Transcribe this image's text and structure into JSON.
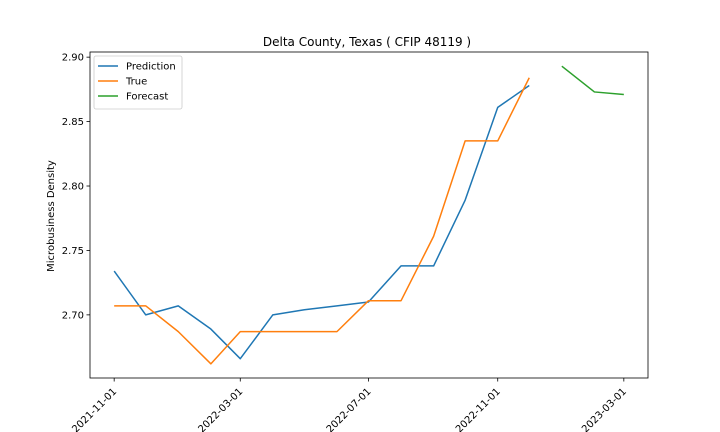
{
  "chart_data": {
    "type": "line",
    "title": "Delta County, Texas ( CFIP 48119 )",
    "xlabel": "",
    "ylabel": "Microbusiness Density",
    "x_ticks": [
      "2021-11-01",
      "2022-03-01",
      "2022-07-01",
      "2022-11-01",
      "2023-03-01"
    ],
    "y_ticks": [
      "2.70",
      "2.75",
      "2.80",
      "2.85",
      "2.90"
    ],
    "xlim": [
      "2021-10-09",
      "2023-03-24"
    ],
    "ylim": [
      2.651,
      2.904
    ],
    "legend": "top-left",
    "series": [
      {
        "name": "Prediction",
        "color": "#1f77b4",
        "x": [
          "2021-11-01",
          "2021-12-01",
          "2022-01-01",
          "2022-02-01",
          "2022-03-01",
          "2022-04-01",
          "2022-05-01",
          "2022-06-01",
          "2022-07-01",
          "2022-08-01",
          "2022-09-01",
          "2022-10-01",
          "2022-11-01",
          "2022-12-01"
        ],
        "y": [
          2.734,
          2.7,
          2.707,
          2.689,
          2.666,
          2.7,
          2.704,
          2.707,
          2.71,
          2.738,
          2.738,
          2.789,
          2.861,
          2.878
        ]
      },
      {
        "name": "True",
        "color": "#ff7f0e",
        "x": [
          "2021-11-01",
          "2021-12-01",
          "2022-01-01",
          "2022-02-01",
          "2022-03-01",
          "2022-04-01",
          "2022-05-01",
          "2022-06-01",
          "2022-07-01",
          "2022-08-01",
          "2022-09-01",
          "2022-10-01",
          "2022-11-01",
          "2022-12-01"
        ],
        "y": [
          2.707,
          2.707,
          2.687,
          2.662,
          2.687,
          2.687,
          2.687,
          2.687,
          2.711,
          2.711,
          2.761,
          2.835,
          2.835,
          2.884
        ]
      },
      {
        "name": "Forecast",
        "color": "#2ca02c",
        "x": [
          "2023-01-01",
          "2023-02-01",
          "2023-03-01"
        ],
        "y": [
          2.893,
          2.873,
          2.871
        ]
      }
    ]
  }
}
